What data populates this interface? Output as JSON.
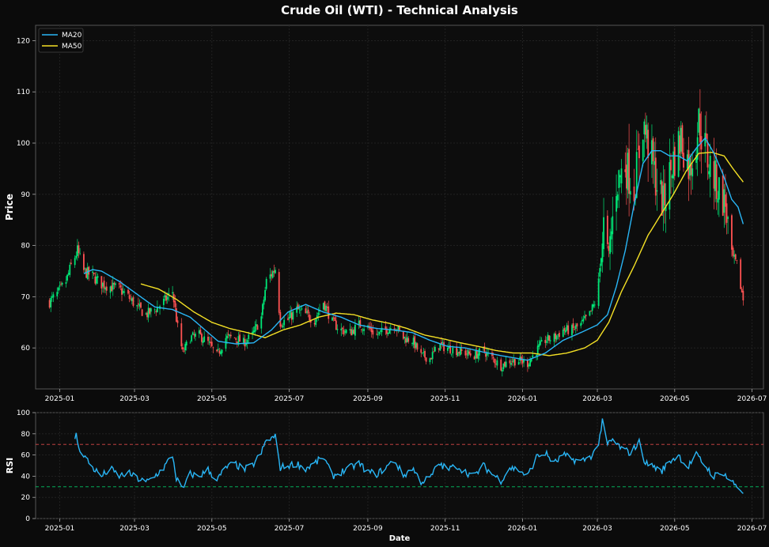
{
  "figure": {
    "title": "Crude Oil (WTI) - Technical Analysis",
    "background": "#0b0b0b",
    "panel_background": "#0d0d0d",
    "spine_color": "#555555",
    "grid_color": "#262626",
    "text_color": "#ffffff"
  },
  "chart_data": [
    {
      "type": "candlestick",
      "name": "price",
      "ylabel": "Price",
      "ylim": [
        52,
        123
      ],
      "yticks": [
        60,
        70,
        80,
        90,
        100,
        110,
        120
      ],
      "xlim": [
        "2024-12-13",
        "2026-07-10"
      ],
      "xticks": [
        "2025-01",
        "2025-03",
        "2025-05",
        "2025-07",
        "2025-09",
        "2025-11",
        "2026-01",
        "2026-03",
        "2026-05",
        "2026-07"
      ],
      "grid": true,
      "legend": {
        "position": "top-left",
        "entries": [
          "MA20",
          "MA50"
        ]
      },
      "colors": {
        "up": "#00e676",
        "down": "#ff5252",
        "ma20": "#29b6f6",
        "ma50": "#f4e025"
      },
      "close_anchors": [
        [
          "2024-12-24",
          69.0
        ],
        [
          "2024-12-30",
          70.5
        ],
        [
          "2025-01-06",
          73.0
        ],
        [
          "2025-01-10",
          76.0
        ],
        [
          "2025-01-15",
          79.0
        ],
        [
          "2025-01-20",
          75.0
        ],
        [
          "2025-01-27",
          74.0
        ],
        [
          "2025-02-03",
          72.5
        ],
        [
          "2025-02-10",
          72.0
        ],
        [
          "2025-02-17",
          71.5
        ],
        [
          "2025-02-24",
          70.0
        ],
        [
          "2025-03-03",
          68.0
        ],
        [
          "2025-03-10",
          66.5
        ],
        [
          "2025-03-17",
          67.5
        ],
        [
          "2025-03-24",
          69.0
        ],
        [
          "2025-03-31",
          71.0
        ],
        [
          "2025-04-04",
          64.0
        ],
        [
          "2025-04-08",
          59.0
        ],
        [
          "2025-04-14",
          62.0
        ],
        [
          "2025-04-21",
          62.5
        ],
        [
          "2025-04-28",
          61.0
        ],
        [
          "2025-05-05",
          58.5
        ],
        [
          "2025-05-12",
          62.0
        ],
        [
          "2025-05-19",
          62.0
        ],
        [
          "2025-05-26",
          61.0
        ],
        [
          "2025-06-02",
          62.5
        ],
        [
          "2025-06-09",
          66.0
        ],
        [
          "2025-06-13",
          73.0
        ],
        [
          "2025-06-20",
          75.5
        ],
        [
          "2025-06-24",
          65.0
        ],
        [
          "2025-06-30",
          65.5
        ],
        [
          "2025-07-07",
          67.5
        ],
        [
          "2025-07-14",
          66.5
        ],
        [
          "2025-07-21",
          65.5
        ],
        [
          "2025-07-28",
          69.0
        ],
        [
          "2025-08-04",
          65.0
        ],
        [
          "2025-08-11",
          63.5
        ],
        [
          "2025-08-18",
          63.0
        ],
        [
          "2025-08-25",
          64.5
        ],
        [
          "2025-09-01",
          64.0
        ],
        [
          "2025-09-08",
          62.5
        ],
        [
          "2025-09-15",
          63.5
        ],
        [
          "2025-09-22",
          64.5
        ],
        [
          "2025-09-29",
          62.0
        ],
        [
          "2025-10-06",
          61.5
        ],
        [
          "2025-10-13",
          58.5
        ],
        [
          "2025-10-20",
          58.0
        ],
        [
          "2025-10-27",
          60.5
        ],
        [
          "2025-11-03",
          60.0
        ],
        [
          "2025-11-10",
          59.5
        ],
        [
          "2025-11-17",
          59.0
        ],
        [
          "2025-11-24",
          58.5
        ],
        [
          "2025-12-01",
          59.5
        ],
        [
          "2025-12-08",
          58.0
        ],
        [
          "2025-12-15",
          56.5
        ],
        [
          "2025-12-22",
          57.5
        ],
        [
          "2025-12-29",
          57.5
        ],
        [
          "2026-01-05",
          57.0
        ],
        [
          "2026-01-12",
          59.5
        ],
        [
          "2026-01-19",
          61.5
        ],
        [
          "2026-01-26",
          62.0
        ],
        [
          "2026-02-02",
          63.5
        ],
        [
          "2026-02-09",
          63.5
        ],
        [
          "2026-02-16",
          64.5
        ],
        [
          "2026-02-23",
          66.5
        ],
        [
          "2026-03-01",
          70.0
        ],
        [
          "2026-03-06",
          84.0
        ],
        [
          "2026-03-10",
          78.0
        ],
        [
          "2026-03-16",
          92.0
        ],
        [
          "2026-03-23",
          96.0
        ],
        [
          "2026-03-30",
          91.0
        ],
        [
          "2026-04-06",
          104.0
        ],
        [
          "2026-04-10",
          100.0
        ],
        [
          "2026-04-16",
          93.0
        ],
        [
          "2026-04-22",
          88.0
        ],
        [
          "2026-04-29",
          96.0
        ],
        [
          "2026-05-06",
          101.0
        ],
        [
          "2026-05-13",
          95.0
        ],
        [
          "2026-05-20",
          104.0
        ],
        [
          "2026-05-27",
          97.0
        ],
        [
          "2026-06-03",
          92.0
        ],
        [
          "2026-06-10",
          88.0
        ],
        [
          "2026-06-15",
          78.0
        ],
        [
          "2026-06-19",
          76.0
        ],
        [
          "2026-06-24",
          69.5
        ]
      ],
      "ma20_anchors": [
        [
          "2025-01-20",
          74.5
        ],
        [
          "2025-01-27",
          75.3
        ],
        [
          "2025-02-03",
          75.0
        ],
        [
          "2025-02-17",
          73.0
        ],
        [
          "2025-03-03",
          70.5
        ],
        [
          "2025-03-17",
          68.0
        ],
        [
          "2025-03-31",
          67.5
        ],
        [
          "2025-04-14",
          66.0
        ],
        [
          "2025-04-28",
          63.0
        ],
        [
          "2025-05-06",
          61.3
        ],
        [
          "2025-05-20",
          60.8
        ],
        [
          "2025-06-03",
          61.0
        ],
        [
          "2025-06-17",
          63.5
        ],
        [
          "2025-06-30",
          67.0
        ],
        [
          "2025-07-14",
          68.5
        ],
        [
          "2025-07-28",
          67.0
        ],
        [
          "2025-08-11",
          66.0
        ],
        [
          "2025-08-25",
          64.5
        ],
        [
          "2025-09-08",
          63.8
        ],
        [
          "2025-09-22",
          63.5
        ],
        [
          "2025-10-06",
          63.0
        ],
        [
          "2025-10-20",
          61.5
        ],
        [
          "2025-11-03",
          60.3
        ],
        [
          "2025-11-17",
          60.0
        ],
        [
          "2025-12-01",
          59.2
        ],
        [
          "2025-12-15",
          58.5
        ],
        [
          "2025-12-29",
          57.9
        ],
        [
          "2026-01-05",
          57.6
        ],
        [
          "2026-01-19",
          59.0
        ],
        [
          "2026-02-02",
          61.5
        ],
        [
          "2026-02-16",
          63.0
        ],
        [
          "2026-03-01",
          64.5
        ],
        [
          "2026-03-09",
          66.5
        ],
        [
          "2026-03-16",
          72.0
        ],
        [
          "2026-03-23",
          79.0
        ],
        [
          "2026-03-30",
          88.0
        ],
        [
          "2026-04-06",
          96.0
        ],
        [
          "2026-04-13",
          98.5
        ],
        [
          "2026-04-20",
          98.5
        ],
        [
          "2026-04-27",
          97.5
        ],
        [
          "2026-05-04",
          97.5
        ],
        [
          "2026-05-11",
          96.5
        ],
        [
          "2026-05-18",
          99.0
        ],
        [
          "2026-05-25",
          101.0
        ],
        [
          "2026-06-01",
          98.0
        ],
        [
          "2026-06-08",
          94.0
        ],
        [
          "2026-06-15",
          89.0
        ],
        [
          "2026-06-20",
          87.5
        ],
        [
          "2026-06-24",
          84.2
        ]
      ],
      "ma50_anchors": [
        [
          "2025-03-06",
          72.5
        ],
        [
          "2025-03-20",
          71.5
        ],
        [
          "2025-04-03",
          69.5
        ],
        [
          "2025-04-17",
          67.0
        ],
        [
          "2025-05-01",
          65.0
        ],
        [
          "2025-05-15",
          63.8
        ],
        [
          "2025-05-29",
          63.0
        ],
        [
          "2025-06-12",
          62.0
        ],
        [
          "2025-06-26",
          63.5
        ],
        [
          "2025-07-10",
          64.5
        ],
        [
          "2025-07-24",
          66.0
        ],
        [
          "2025-08-07",
          66.8
        ],
        [
          "2025-08-21",
          66.5
        ],
        [
          "2025-09-04",
          65.5
        ],
        [
          "2025-09-18",
          64.8
        ],
        [
          "2025-10-02",
          63.8
        ],
        [
          "2025-10-16",
          62.5
        ],
        [
          "2025-10-30",
          61.8
        ],
        [
          "2025-11-13",
          61.0
        ],
        [
          "2025-11-27",
          60.3
        ],
        [
          "2025-12-11",
          59.5
        ],
        [
          "2025-12-25",
          59.0
        ],
        [
          "2026-01-08",
          59.0
        ],
        [
          "2026-01-22",
          58.5
        ],
        [
          "2026-02-05",
          59.0
        ],
        [
          "2026-02-19",
          60.0
        ],
        [
          "2026-03-01",
          61.5
        ],
        [
          "2026-03-10",
          65.0
        ],
        [
          "2026-03-20",
          71.0
        ],
        [
          "2026-03-30",
          76.0
        ],
        [
          "2026-04-10",
          82.0
        ],
        [
          "2026-04-20",
          86.0
        ],
        [
          "2026-04-30",
          90.0
        ],
        [
          "2026-05-10",
          94.5
        ],
        [
          "2026-05-20",
          98.0
        ],
        [
          "2026-05-30",
          98.2
        ],
        [
          "2026-06-09",
          97.5
        ],
        [
          "2026-06-16",
          95.0
        ],
        [
          "2026-06-24",
          92.4
        ]
      ]
    },
    {
      "type": "line",
      "name": "rsi",
      "ylabel": "RSI",
      "xlabel": "Date",
      "ylim": [
        0,
        100
      ],
      "yticks": [
        0,
        20,
        40,
        60,
        80,
        100
      ],
      "xlim": [
        "2024-12-13",
        "2026-07-10"
      ],
      "xticks": [
        "2025-01",
        "2025-03",
        "2025-05",
        "2025-07",
        "2025-09",
        "2025-11",
        "2026-01",
        "2026-03",
        "2026-05",
        "2026-07"
      ],
      "overbought": 70,
      "oversold": 30,
      "grid": true,
      "colors": {
        "line": "#29b6f6",
        "overbought": "#ff5252",
        "oversold": "#00e676"
      },
      "rsi_anchors": [
        [
          "2025-01-13",
          76
        ],
        [
          "2025-01-14",
          82
        ],
        [
          "2025-01-15",
          70
        ],
        [
          "2025-01-20",
          60
        ],
        [
          "2025-01-27",
          48
        ],
        [
          "2025-02-03",
          40
        ],
        [
          "2025-02-10",
          47
        ],
        [
          "2025-02-17",
          40
        ],
        [
          "2025-02-24",
          43
        ],
        [
          "2025-03-03",
          38
        ],
        [
          "2025-03-10",
          34
        ],
        [
          "2025-03-17",
          40
        ],
        [
          "2025-03-24",
          48
        ],
        [
          "2025-03-31",
          60
        ],
        [
          "2025-04-03",
          38
        ],
        [
          "2025-04-08",
          27
        ],
        [
          "2025-04-14",
          42
        ],
        [
          "2025-04-21",
          40
        ],
        [
          "2025-04-28",
          46
        ],
        [
          "2025-05-05",
          36
        ],
        [
          "2025-05-12",
          48
        ],
        [
          "2025-05-19",
          52
        ],
        [
          "2025-05-26",
          46
        ],
        [
          "2025-06-02",
          50
        ],
        [
          "2025-06-09",
          62
        ],
        [
          "2025-06-13",
          74
        ],
        [
          "2025-06-20",
          77
        ],
        [
          "2025-06-24",
          48
        ],
        [
          "2025-06-30",
          50
        ],
        [
          "2025-07-07",
          52
        ],
        [
          "2025-07-14",
          47
        ],
        [
          "2025-07-21",
          52
        ],
        [
          "2025-07-28",
          58
        ],
        [
          "2025-08-04",
          40
        ],
        [
          "2025-08-11",
          44
        ],
        [
          "2025-08-18",
          48
        ],
        [
          "2025-08-25",
          52
        ],
        [
          "2025-09-01",
          44
        ],
        [
          "2025-09-08",
          42
        ],
        [
          "2025-09-15",
          48
        ],
        [
          "2025-09-22",
          55
        ],
        [
          "2025-09-29",
          40
        ],
        [
          "2025-10-06",
          48
        ],
        [
          "2025-10-13",
          35
        ],
        [
          "2025-10-20",
          38
        ],
        [
          "2025-10-27",
          52
        ],
        [
          "2025-11-03",
          46
        ],
        [
          "2025-11-10",
          50
        ],
        [
          "2025-11-17",
          44
        ],
        [
          "2025-11-24",
          40
        ],
        [
          "2025-12-01",
          50
        ],
        [
          "2025-12-08",
          42
        ],
        [
          "2025-12-15",
          36
        ],
        [
          "2025-12-22",
          48
        ],
        [
          "2025-12-29",
          46
        ],
        [
          "2026-01-05",
          40
        ],
        [
          "2026-01-12",
          58
        ],
        [
          "2026-01-19",
          62
        ],
        [
          "2026-01-26",
          52
        ],
        [
          "2026-02-02",
          60
        ],
        [
          "2026-02-09",
          56
        ],
        [
          "2026-02-16",
          54
        ],
        [
          "2026-02-23",
          58
        ],
        [
          "2026-03-01",
          66
        ],
        [
          "2026-03-05",
          91
        ],
        [
          "2026-03-09",
          70
        ],
        [
          "2026-03-13",
          74
        ],
        [
          "2026-03-20",
          66
        ],
        [
          "2026-03-27",
          62
        ],
        [
          "2026-04-03",
          72
        ],
        [
          "2026-04-08",
          52
        ],
        [
          "2026-04-14",
          50
        ],
        [
          "2026-04-20",
          44
        ],
        [
          "2026-04-27",
          54
        ],
        [
          "2026-05-04",
          60
        ],
        [
          "2026-05-11",
          48
        ],
        [
          "2026-05-18",
          60
        ],
        [
          "2026-05-25",
          50
        ],
        [
          "2026-06-01",
          40
        ],
        [
          "2026-06-08",
          44
        ],
        [
          "2026-06-13",
          36
        ],
        [
          "2026-06-18",
          32
        ],
        [
          "2026-06-24",
          25
        ]
      ]
    }
  ]
}
